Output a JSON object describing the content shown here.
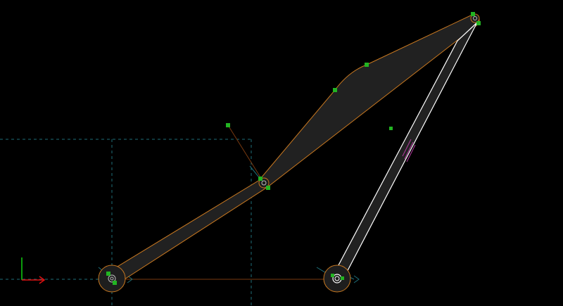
{
  "viewport": {
    "background": "#000000",
    "link_fill": "#212121",
    "link_stroke": "#c87820",
    "grip_color": "#22b422",
    "selected_stroke": "#ffffff",
    "guide_color": "#1e6e78",
    "constraint_color": "#b43ca0",
    "axis_x_color": "#e01010",
    "axis_y_color": "#10d010"
  },
  "scene": {
    "links": [
      {
        "id": "lower-link",
        "role": "arm"
      },
      {
        "id": "upper-link",
        "role": "tapered-arm"
      },
      {
        "id": "rocker-link",
        "role": "selected-bar"
      }
    ],
    "joints": [
      {
        "id": "base-pivot-left",
        "type": "fixed-pivot"
      },
      {
        "id": "elbow-joint",
        "type": "revolute"
      },
      {
        "id": "apex-joint",
        "type": "revolute"
      },
      {
        "id": "base-pivot-right",
        "type": "fixed-pivot"
      }
    ],
    "origin_axes": {
      "x_icon": "arrow-right-icon",
      "y_icon": "arrow-up-icon"
    }
  }
}
